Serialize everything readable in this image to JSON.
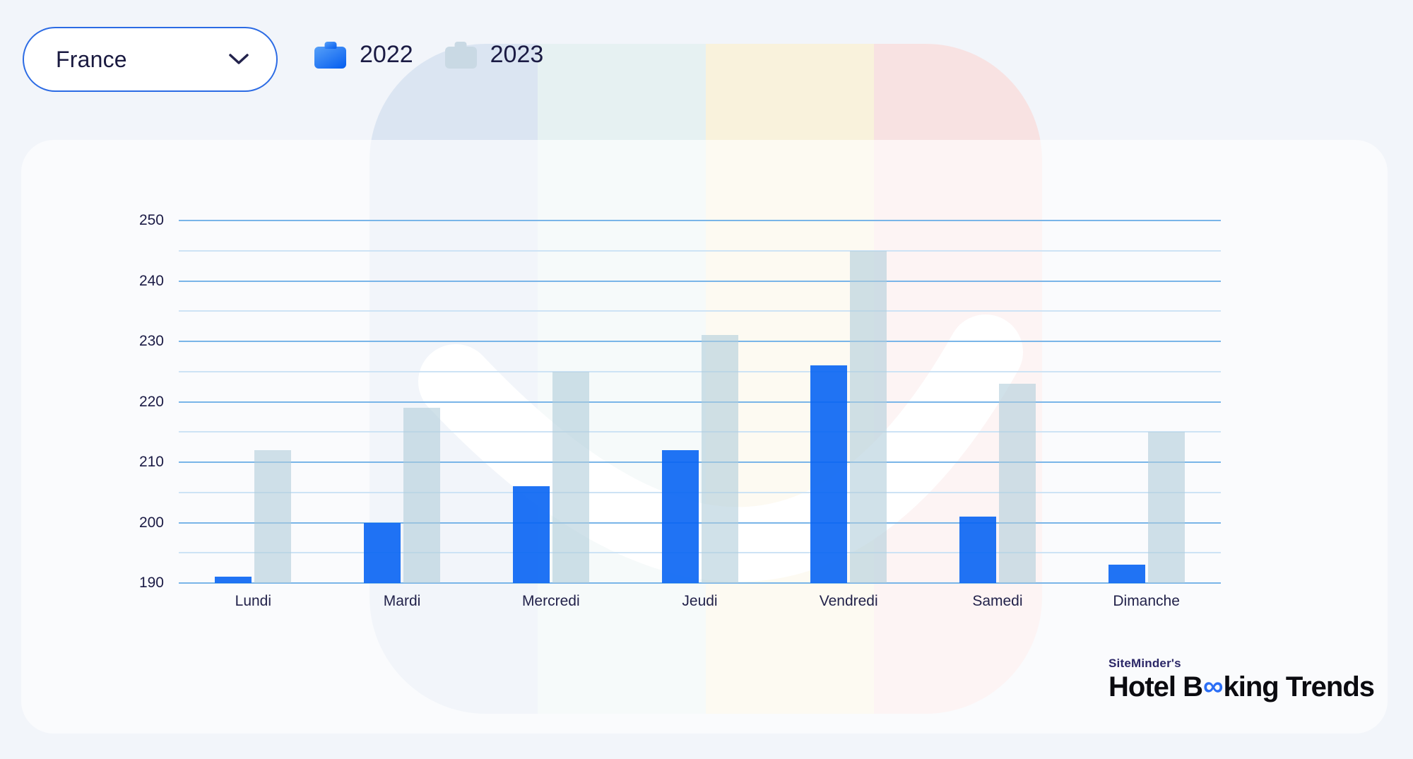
{
  "page": {
    "background": "#f2f5fa"
  },
  "country_dropdown": {
    "value": "France",
    "icon": "chevron-down-icon"
  },
  "legend": {
    "items": [
      {
        "label": "2022",
        "icon": "briefcase-icon",
        "color": "#1266f1"
      },
      {
        "label": "2023",
        "icon": "briefcase-icon",
        "color": "#c9d9e4"
      }
    ]
  },
  "branding": {
    "company": "SiteMinder's",
    "product_pre": "Hotel B",
    "product_infinity": "∞",
    "product_post": "king Trends"
  },
  "background_shape": {
    "bands": [
      "#dbe5f2",
      "#e6f1f2",
      "#f9f2dc",
      "#f8e2e2"
    ],
    "smile_color": "#ffffff"
  },
  "chart_data": {
    "type": "bar",
    "categories": [
      "Lundi",
      "Mardi",
      "Mercredi",
      "Jeudi",
      "Vendredi",
      "Samedi",
      "Dimanche"
    ],
    "series": [
      {
        "name": "2022",
        "color": "rgba(8,100,243,0.9)",
        "values": [
          191,
          200,
          206,
          212,
          226,
          201,
          193
        ]
      },
      {
        "name": "2023",
        "color": "rgba(176,205,219,0.6)",
        "values": [
          212,
          219,
          225,
          231,
          245,
          223,
          215
        ]
      }
    ],
    "title": "",
    "xlabel": "",
    "ylabel": "",
    "ylim": [
      190,
      250
    ],
    "ytick_step": 10,
    "minor_step": 5,
    "grid": true,
    "legend_position": "top"
  }
}
